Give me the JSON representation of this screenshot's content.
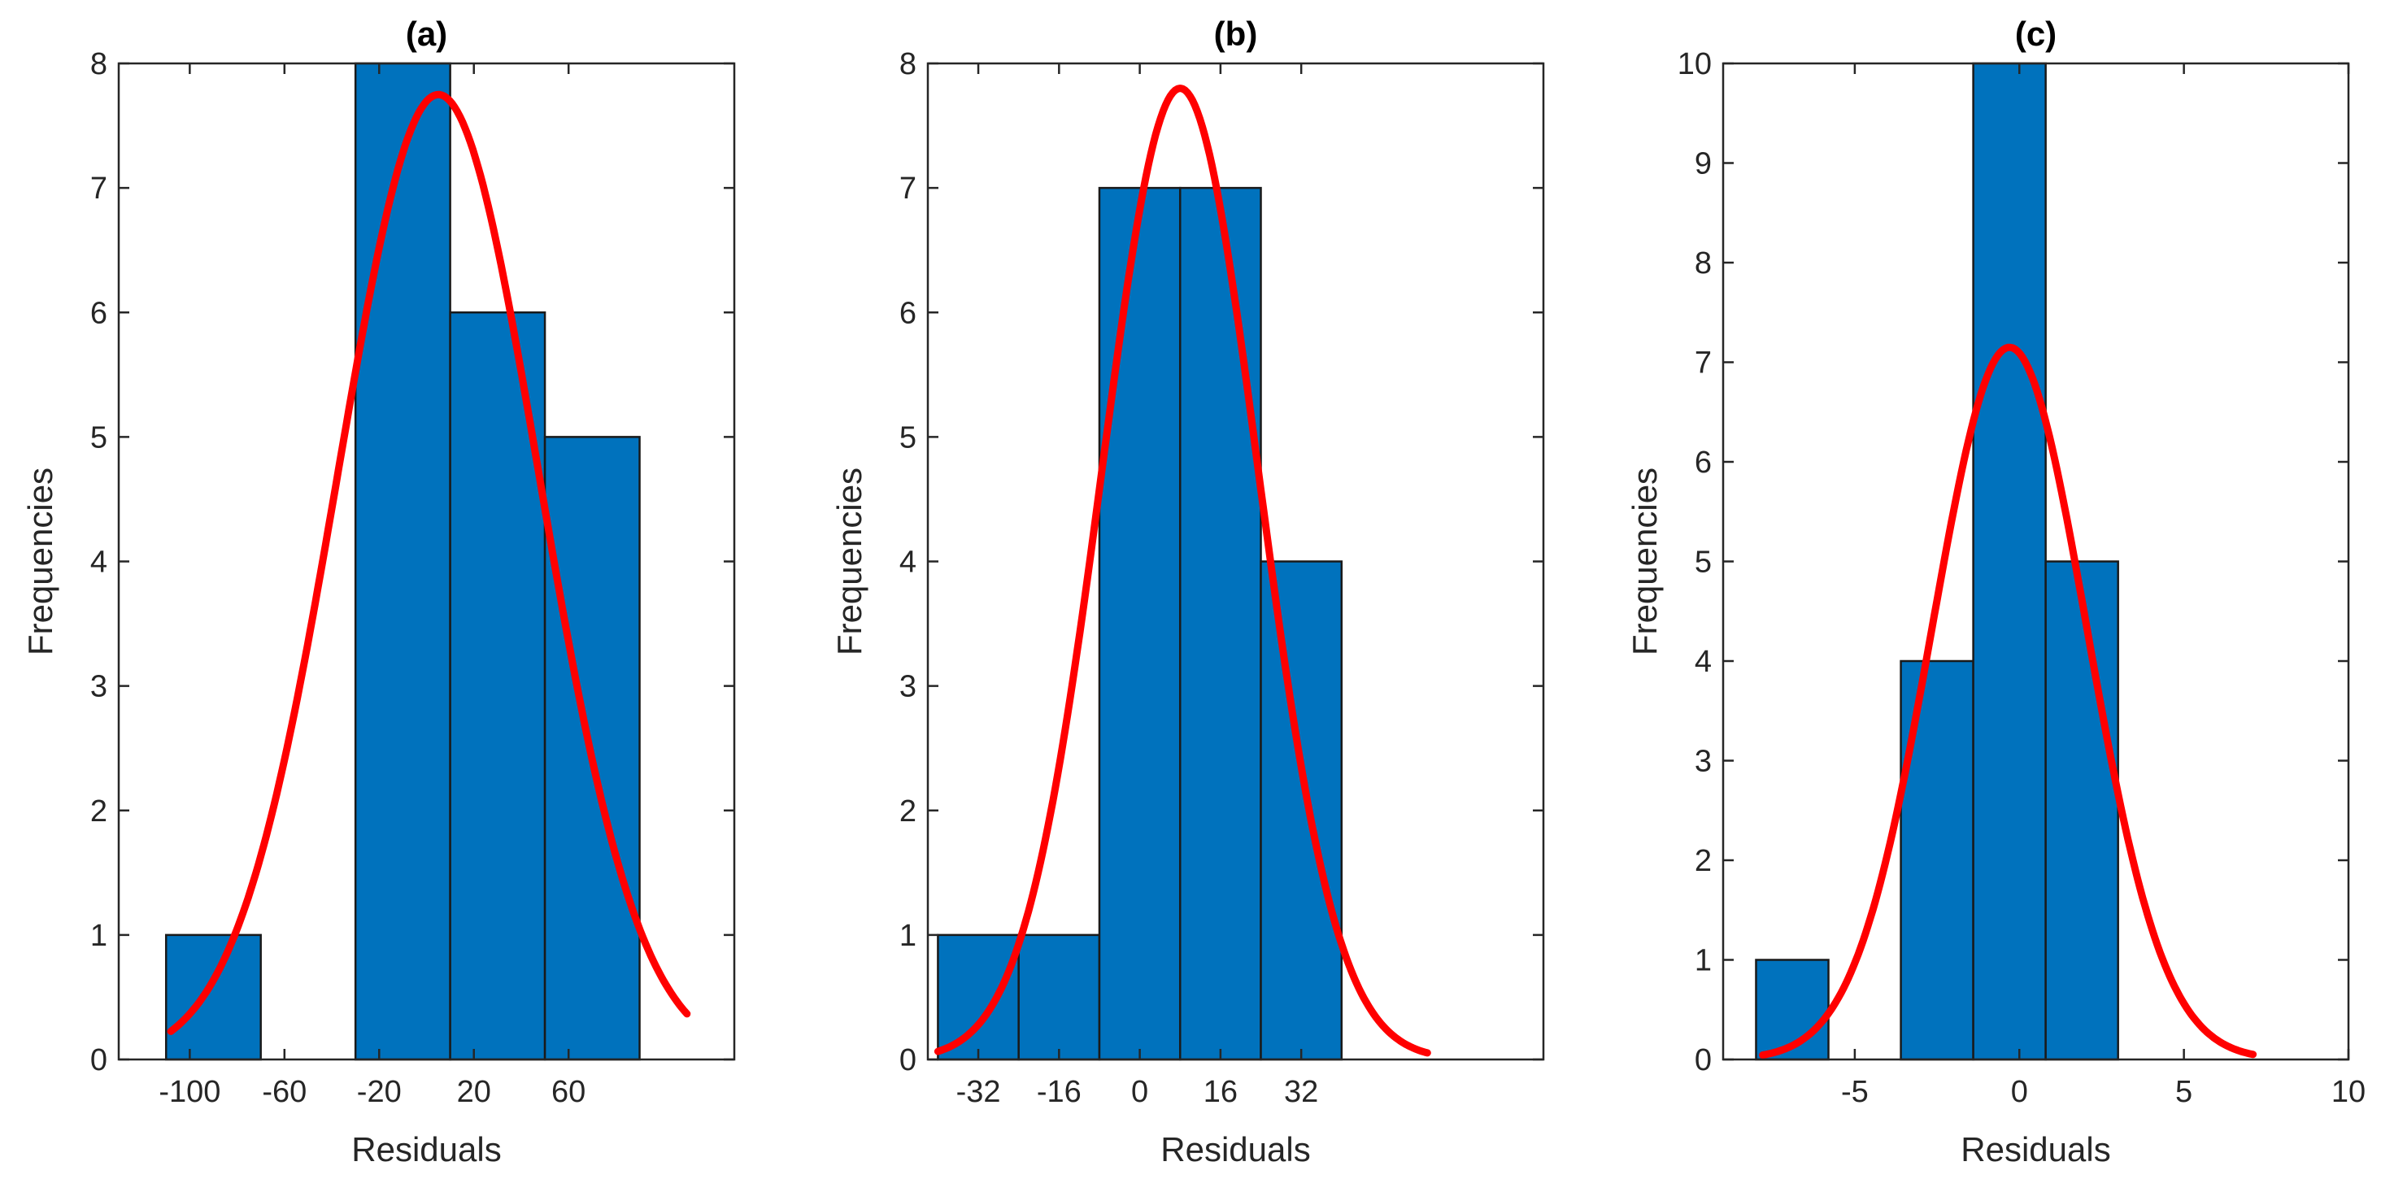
{
  "chart_data": [
    {
      "type": "bar",
      "title": "(a)",
      "xlabel": "Residuals",
      "ylabel": "Frequencies",
      "xlim": [
        -130,
        130
      ],
      "ylim": [
        0,
        8
      ],
      "xticks": [
        -100,
        -60,
        -20,
        20,
        60
      ],
      "xtick_labels": [
        "-100",
        "-60",
        "-20",
        "20",
        "60"
      ],
      "yticks": [
        0,
        1,
        2,
        3,
        4,
        5,
        6,
        7,
        8
      ],
      "yticks_right": [
        0,
        1,
        2,
        3,
        4,
        5,
        6,
        7,
        8
      ],
      "bin_edges": [
        -110,
        -70,
        -30,
        10,
        50,
        90
      ],
      "values": [
        1,
        0,
        8,
        6,
        5
      ],
      "fit": {
        "type": "normal",
        "mu": 5,
        "sigma": 42.5,
        "peak": 7.75,
        "x_range": [
          -108,
          110
        ]
      }
    },
    {
      "type": "bar",
      "title": "(b)",
      "xlabel": "Residuals",
      "ylabel": "Frequencies",
      "xlim": [
        -42,
        80
      ],
      "ylim": [
        0,
        8
      ],
      "xticks": [
        -32,
        -16,
        0,
        16,
        32
      ],
      "xtick_labels": [
        "-32",
        "-16",
        "0",
        "16",
        "32"
      ],
      "yticks": [
        0,
        1,
        2,
        3,
        4,
        5,
        6,
        7,
        8
      ],
      "yticks_right": [
        0,
        1,
        2,
        3,
        4,
        5,
        6,
        7,
        8
      ],
      "bin_edges": [
        -40,
        -24,
        -8,
        8,
        24,
        40
      ],
      "values": [
        1,
        1,
        7,
        7,
        4
      ],
      "fit": {
        "type": "normal",
        "mu": 8,
        "sigma": 15.5,
        "peak": 7.8,
        "x_range": [
          -40,
          57
        ]
      }
    },
    {
      "type": "bar",
      "title": "(c)",
      "xlabel": "Residuals",
      "ylabel": "Frequencies",
      "xlim": [
        -9,
        10
      ],
      "ylim": [
        0,
        10
      ],
      "xticks": [
        -5,
        0,
        5,
        10
      ],
      "xtick_labels": [
        "-5",
        "0",
        "5",
        "10"
      ],
      "yticks": [
        0,
        1,
        2,
        3,
        4,
        5,
        6,
        7,
        8,
        9,
        10
      ],
      "yticks_right": [
        0,
        1,
        2,
        3,
        4,
        5,
        6,
        7,
        8,
        9,
        10
      ],
      "bin_edges": [
        -8,
        -5.8,
        -3.6,
        -1.4,
        0.8,
        3.0
      ],
      "values": [
        1,
        0,
        4,
        10,
        5
      ],
      "fit": {
        "type": "normal",
        "mu": -0.3,
        "sigma": 2.35,
        "peak": 7.15,
        "x_range": [
          -7.8,
          7.1
        ]
      }
    }
  ],
  "colors": {
    "bar": "#0072bd",
    "fit": "#ff0000",
    "axis": "#262626"
  }
}
